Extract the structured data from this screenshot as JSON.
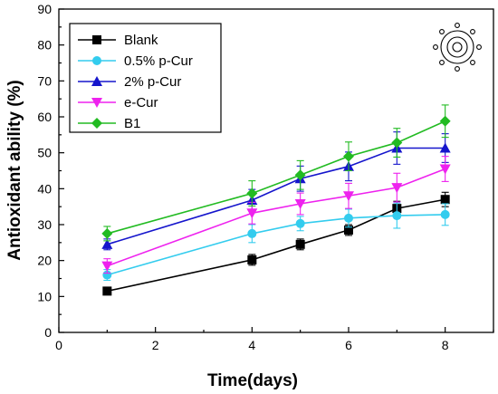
{
  "chart_data": {
    "type": "line",
    "title": "",
    "xlabel": "Time(days)",
    "ylabel": "Antioxidant ability (%)",
    "xlim": [
      0,
      9
    ],
    "ylim": [
      0,
      90
    ],
    "xticks": [
      "0",
      "2",
      "4",
      "6",
      "8"
    ],
    "yticks": [
      "0",
      "10",
      "20",
      "30",
      "40",
      "50",
      "60",
      "70",
      "80",
      "90"
    ],
    "grid": false,
    "legend_position": "top-left",
    "x": [
      1,
      4,
      5,
      6,
      7,
      8
    ],
    "series": [
      {
        "name": "Blank",
        "color": "#000000",
        "marker": "square",
        "values": [
          11.5,
          20.2,
          24.5,
          28.5,
          34.5,
          37.0
        ],
        "errors": [
          1.0,
          1.5,
          1.5,
          1.5,
          2.0,
          2.0
        ]
      },
      {
        "name": "0.5% p-Cur",
        "color": "#33CCEE",
        "marker": "circle",
        "values": [
          16.0,
          27.5,
          30.3,
          31.8,
          32.5,
          32.8
        ],
        "errors": [
          1.5,
          2.5,
          2.0,
          2.5,
          3.5,
          3.0
        ]
      },
      {
        "name": "2% p-Cur",
        "color": "#1515CC",
        "marker": "triangle-up",
        "values": [
          24.5,
          36.8,
          42.8,
          46.2,
          51.3,
          51.3
        ],
        "errors": [
          1.5,
          3.0,
          3.5,
          4.0,
          4.5,
          4.0
        ]
      },
      {
        "name": "e-Cur",
        "color": "#EE22EE",
        "marker": "triangle-down",
        "values": [
          18.5,
          33.2,
          35.8,
          38.0,
          40.3,
          45.5
        ],
        "errors": [
          2.0,
          3.0,
          3.0,
          3.5,
          4.0,
          3.5
        ]
      },
      {
        "name": "B1",
        "color": "#22BB22",
        "marker": "diamond",
        "values": [
          27.5,
          38.7,
          43.8,
          49.0,
          52.8,
          58.8
        ],
        "errors": [
          2.0,
          3.5,
          4.0,
          4.0,
          4.0,
          4.5
        ]
      }
    ]
  }
}
